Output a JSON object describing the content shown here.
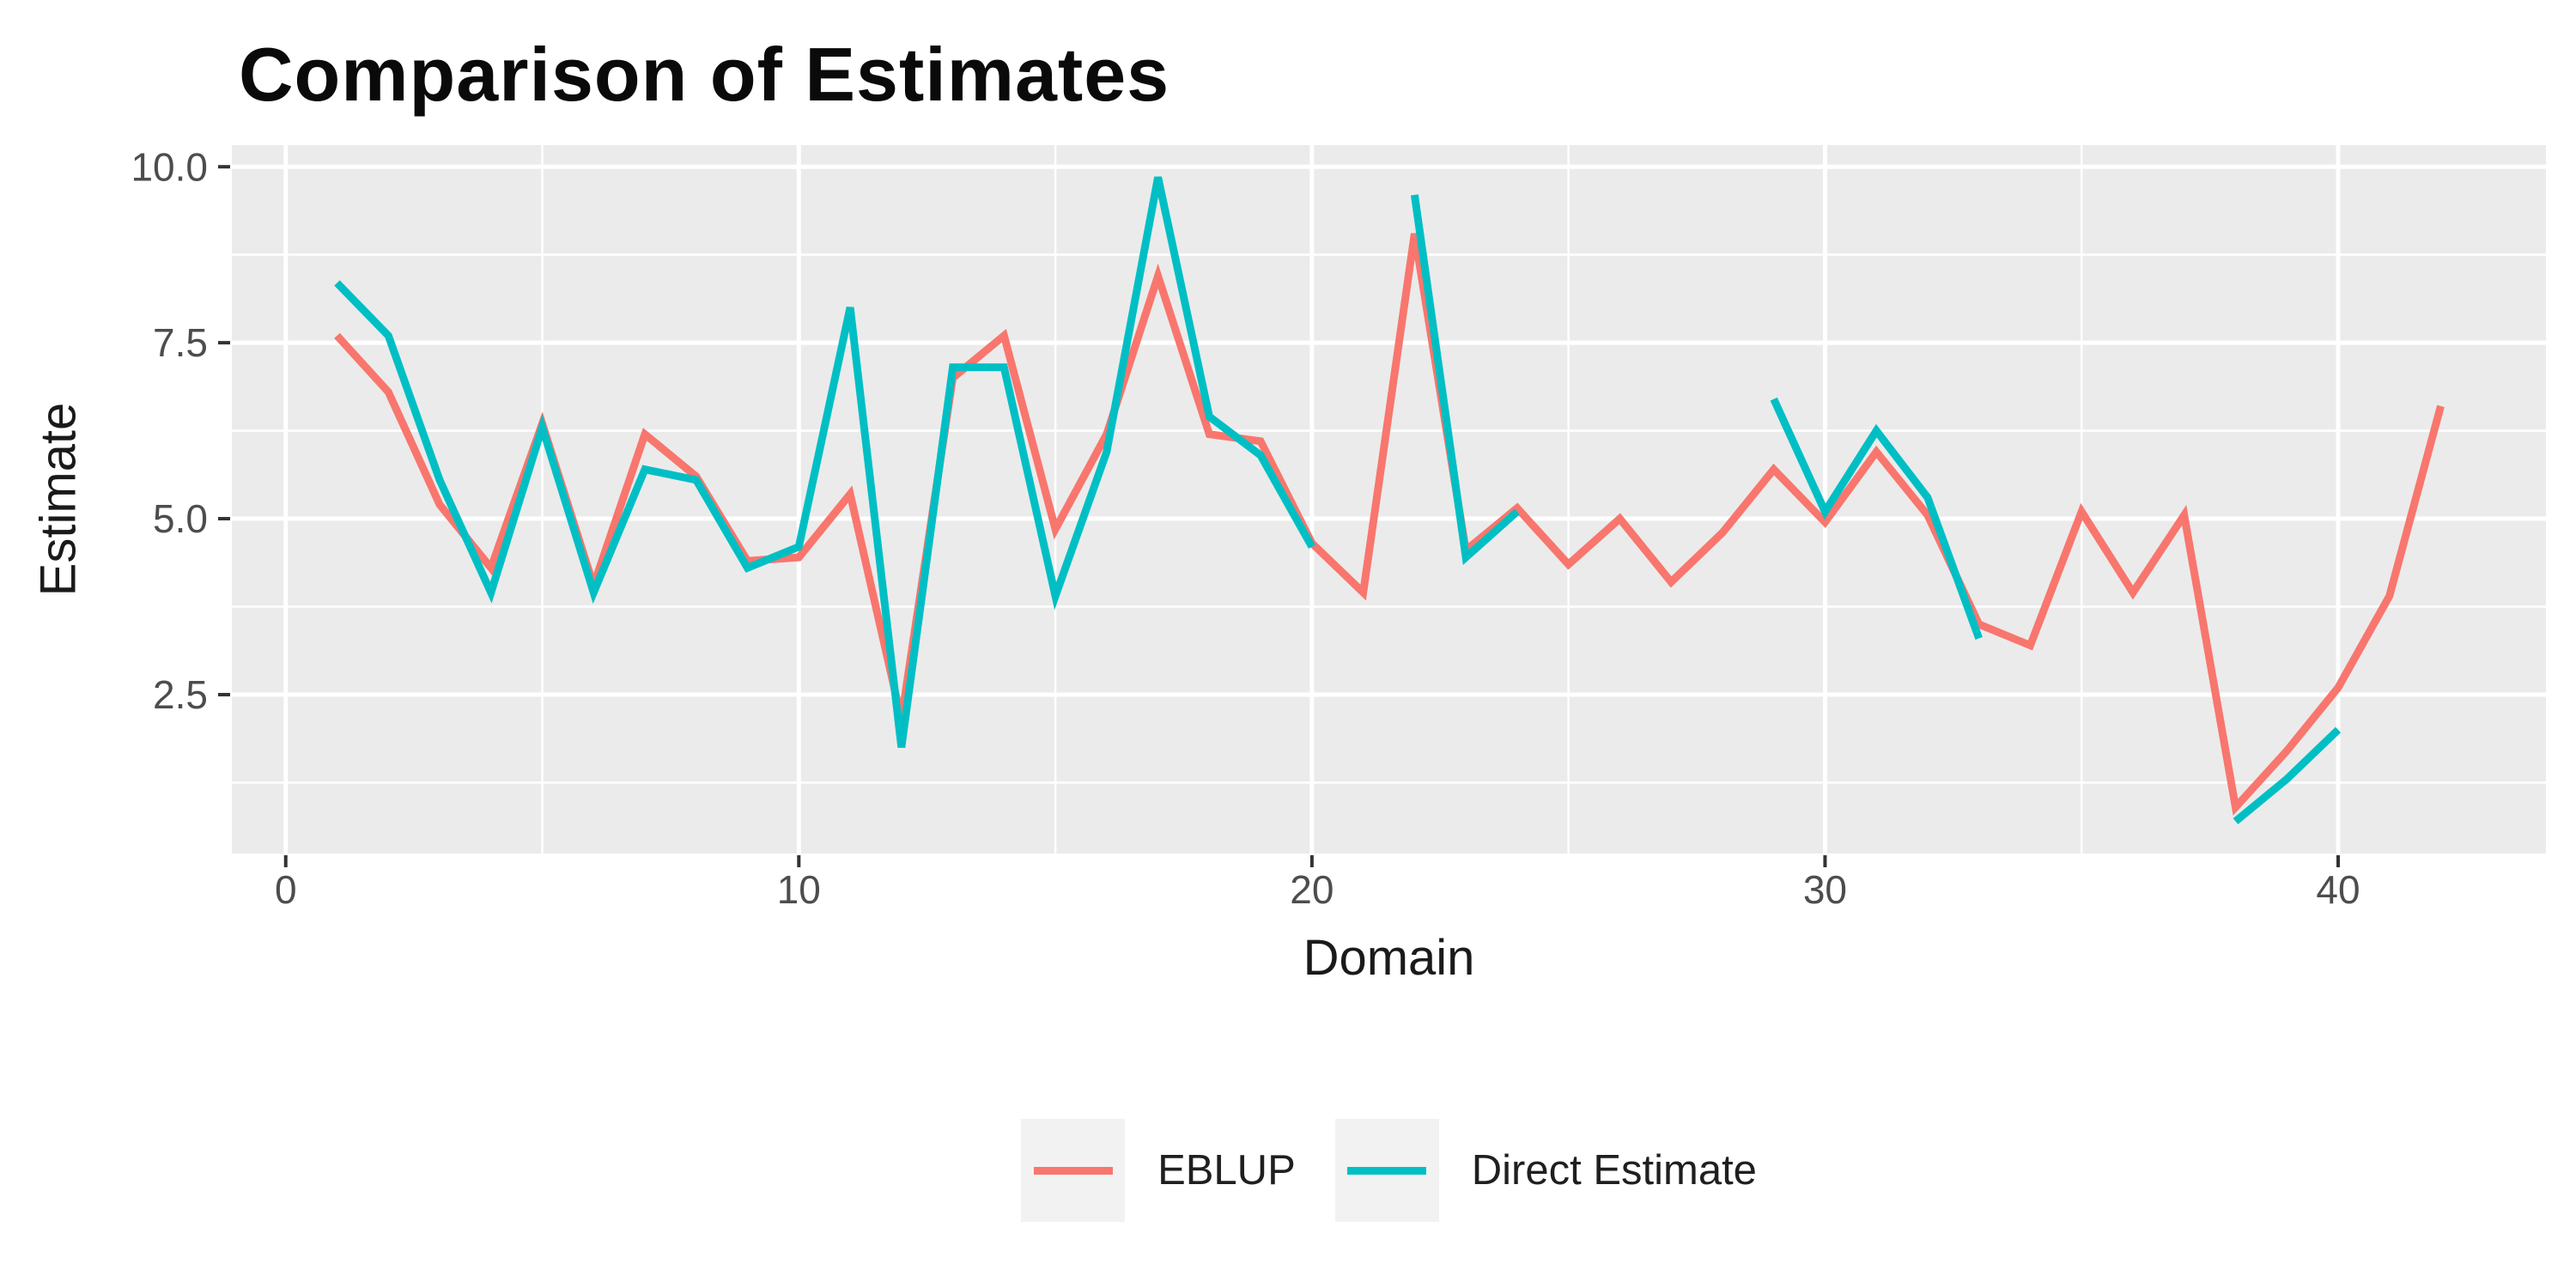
{
  "page": {
    "background": "#ffffff"
  },
  "chart": {
    "title": "Comparison of Estimates",
    "x_axis": {
      "label": "Domain",
      "ticks_major": [
        0,
        10,
        20,
        30,
        40
      ],
      "ticks_minor": [
        5,
        15,
        25,
        35
      ]
    },
    "y_axis": {
      "label": "Estimate",
      "ticks_major": [
        2.5,
        5.0,
        7.5,
        10.0
      ],
      "ticks_minor": [
        1.25,
        3.75,
        6.25,
        8.75
      ]
    },
    "legend": {
      "entries": [
        {
          "label": "EBLUP"
        },
        {
          "label": "Direct Estimate"
        }
      ]
    },
    "colors": {
      "eblup": "#F8766D",
      "direct": "#00BFC4",
      "panel_background": "#EBEBEB",
      "grid": "#FFFFFF",
      "tick_mark": "#333333",
      "tick_label": "#4D4D4D",
      "key_background": "#F2F2F2"
    }
  },
  "chart_data": {
    "type": "line",
    "title": "Comparison of Estimates",
    "xlabel": "Domain",
    "ylabel": "Estimate",
    "x": [
      1,
      2,
      3,
      4,
      5,
      6,
      7,
      8,
      9,
      10,
      11,
      12,
      13,
      14,
      15,
      16,
      17,
      18,
      19,
      20,
      21,
      22,
      23,
      24,
      25,
      26,
      27,
      28,
      29,
      30,
      31,
      32,
      33,
      34,
      35,
      36,
      37,
      38,
      39,
      40,
      41,
      42
    ],
    "series": [
      {
        "name": "EBLUP",
        "color": "#F8766D",
        "values": [
          7.6,
          6.8,
          5.2,
          4.3,
          6.35,
          4.05,
          6.2,
          5.6,
          4.4,
          4.45,
          5.35,
          2.15,
          7.0,
          7.6,
          4.85,
          6.2,
          8.45,
          6.2,
          6.1,
          4.65,
          3.95,
          9.05,
          4.55,
          5.15,
          4.35,
          5.0,
          4.1,
          4.8,
          5.7,
          4.95,
          5.95,
          5.05,
          3.5,
          3.2,
          5.1,
          3.95,
          5.05,
          0.9,
          1.7,
          2.6,
          3.9,
          6.6
        ]
      },
      {
        "name": "Direct Estimate",
        "color": "#00BFC4",
        "values": [
          8.35,
          7.6,
          5.55,
          3.95,
          6.3,
          3.95,
          5.7,
          5.55,
          4.3,
          4.6,
          8.0,
          1.75,
          7.15,
          7.15,
          3.9,
          5.95,
          9.85,
          6.45,
          5.9,
          4.6,
          null,
          9.6,
          4.45,
          5.1,
          null,
          null,
          null,
          null,
          6.7,
          5.1,
          6.25,
          5.3,
          3.3,
          null,
          null,
          null,
          null,
          0.7,
          1.3,
          2.0,
          null,
          null
        ]
      }
    ],
    "xlim": [
      -1.05,
      44.05
    ],
    "ylim": [
      0.2425,
      10.3075
    ],
    "x_ticks_major": [
      0,
      10,
      20,
      30,
      40
    ],
    "x_ticks_minor": [
      5,
      15,
      25,
      35
    ],
    "y_ticks_major": [
      2.5,
      5.0,
      7.5,
      10.0
    ],
    "y_ticks_minor": [
      1.25,
      3.75,
      6.25,
      8.75
    ],
    "grid": true,
    "legend_position": "bottom"
  }
}
